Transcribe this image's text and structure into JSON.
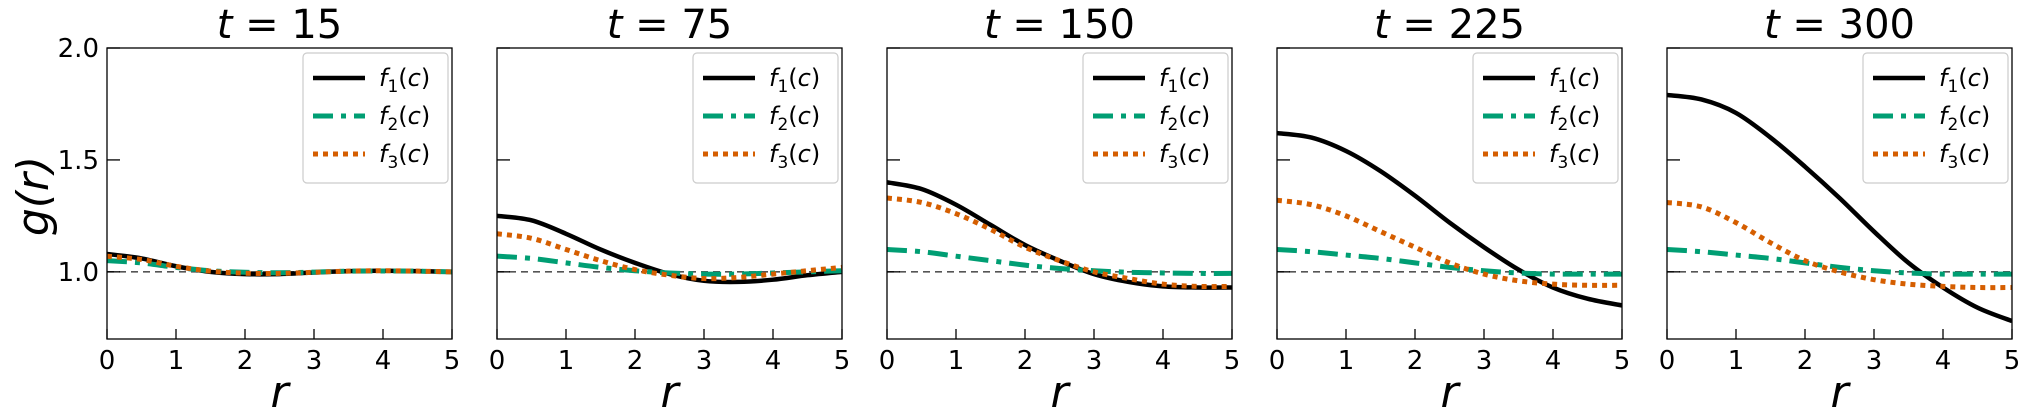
{
  "figure": {
    "ylabel": "g(r)",
    "xlabel": "r",
    "reference_line_y": 1.0
  },
  "chart_data": [
    {
      "type": "line",
      "title_var": "t",
      "title_eq": " = ",
      "title_num": "15",
      "xlabel": "r",
      "ylabel": "g(r)",
      "xlim": [
        0,
        5
      ],
      "ylim": [
        0.7,
        2.0
      ],
      "xticks": [
        "0",
        "1",
        "2",
        "3",
        "4",
        "5"
      ],
      "yticks": [
        "1.0",
        "1.5",
        "2.0"
      ],
      "grid": false,
      "legend_position": "top-right",
      "series": [
        {
          "name": "f1(c)",
          "label_main": "f",
          "label_sub": "1",
          "label_arg": "(c)",
          "color": "#000000",
          "style": "solid",
          "x": [
            0,
            0.5,
            1,
            1.5,
            2,
            2.5,
            3,
            3.5,
            4,
            4.5,
            5
          ],
          "y": [
            1.08,
            1.06,
            1.025,
            1.0,
            0.99,
            0.99,
            0.997,
            1.003,
            1.005,
            1.003,
            1.0
          ]
        },
        {
          "name": "f2(c)",
          "label_main": "f",
          "label_sub": "2",
          "label_arg": "(c)",
          "color": "#009E73",
          "style": "dashdot",
          "x": [
            0,
            0.5,
            1,
            1.5,
            2,
            2.5,
            3,
            3.5,
            4,
            4.5,
            5
          ],
          "y": [
            1.05,
            1.04,
            1.02,
            1.005,
            0.998,
            0.996,
            0.999,
            1.003,
            1.004,
            1.003,
            1.0
          ]
        },
        {
          "name": "f3(c)",
          "label_main": "f",
          "label_sub": "3",
          "label_arg": "(c)",
          "color": "#D55E00",
          "style": "dotted",
          "x": [
            0,
            0.5,
            1,
            1.5,
            2,
            2.5,
            3,
            3.5,
            4,
            4.5,
            5
          ],
          "y": [
            1.07,
            1.055,
            1.025,
            1.003,
            0.994,
            0.993,
            0.998,
            1.003,
            1.005,
            1.003,
            1.0
          ]
        }
      ]
    },
    {
      "type": "line",
      "title_var": "t",
      "title_eq": " = ",
      "title_num": "75",
      "xlabel": "r",
      "ylabel": "g(r)",
      "xlim": [
        0,
        5
      ],
      "ylim": [
        0.7,
        2.0
      ],
      "xticks": [
        "0",
        "1",
        "2",
        "3",
        "4",
        "5"
      ],
      "yticks": [],
      "grid": false,
      "legend_position": "top-right",
      "series": [
        {
          "name": "f1(c)",
          "label_main": "f",
          "label_sub": "1",
          "label_arg": "(c)",
          "color": "#000000",
          "style": "solid",
          "x": [
            0,
            0.5,
            1,
            1.5,
            2,
            2.5,
            3,
            3.5,
            4,
            4.5,
            5
          ],
          "y": [
            1.25,
            1.23,
            1.17,
            1.1,
            1.04,
            0.99,
            0.96,
            0.955,
            0.965,
            0.985,
            1.0
          ]
        },
        {
          "name": "f2(c)",
          "label_main": "f",
          "label_sub": "2",
          "label_arg": "(c)",
          "color": "#009E73",
          "style": "dashdot",
          "x": [
            0,
            0.5,
            1,
            1.5,
            2,
            2.5,
            3,
            3.5,
            4,
            4.5,
            5
          ],
          "y": [
            1.07,
            1.06,
            1.04,
            1.02,
            1.005,
            0.995,
            0.99,
            0.99,
            0.995,
            1.0,
            1.005
          ]
        },
        {
          "name": "f3(c)",
          "label_main": "f",
          "label_sub": "3",
          "label_arg": "(c)",
          "color": "#D55E00",
          "style": "dotted",
          "x": [
            0,
            0.5,
            1,
            1.5,
            2,
            2.5,
            3,
            3.5,
            4,
            4.5,
            5
          ],
          "y": [
            1.17,
            1.15,
            1.1,
            1.05,
            1.01,
            0.985,
            0.97,
            0.975,
            0.99,
            1.005,
            1.02
          ]
        }
      ]
    },
    {
      "type": "line",
      "title_var": "t",
      "title_eq": " = ",
      "title_num": "150",
      "xlabel": "r",
      "ylabel": "g(r)",
      "xlim": [
        0,
        5
      ],
      "ylim": [
        0.7,
        2.0
      ],
      "xticks": [
        "0",
        "1",
        "2",
        "3",
        "4",
        "5"
      ],
      "yticks": [],
      "grid": false,
      "legend_position": "top-right",
      "series": [
        {
          "name": "f1(c)",
          "label_main": "f",
          "label_sub": "1",
          "label_arg": "(c)",
          "color": "#000000",
          "style": "solid",
          "x": [
            0,
            0.5,
            1,
            1.5,
            2,
            2.5,
            3,
            3.5,
            4,
            4.5,
            5
          ],
          "y": [
            1.4,
            1.37,
            1.3,
            1.21,
            1.12,
            1.05,
            0.99,
            0.955,
            0.935,
            0.93,
            0.93
          ]
        },
        {
          "name": "f2(c)",
          "label_main": "f",
          "label_sub": "2",
          "label_arg": "(c)",
          "color": "#009E73",
          "style": "dashdot",
          "x": [
            0,
            0.5,
            1,
            1.5,
            2,
            2.5,
            3,
            3.5,
            4,
            4.5,
            5
          ],
          "y": [
            1.1,
            1.09,
            1.07,
            1.05,
            1.03,
            1.015,
            1.005,
            0.998,
            0.995,
            0.993,
            0.993
          ]
        },
        {
          "name": "f3(c)",
          "label_main": "f",
          "label_sub": "3",
          "label_arg": "(c)",
          "color": "#D55E00",
          "style": "dotted",
          "x": [
            0,
            0.5,
            1,
            1.5,
            2,
            2.5,
            3,
            3.5,
            4,
            4.5,
            5
          ],
          "y": [
            1.33,
            1.31,
            1.26,
            1.19,
            1.11,
            1.05,
            1.0,
            0.97,
            0.945,
            0.935,
            0.935
          ]
        }
      ]
    },
    {
      "type": "line",
      "title_var": "t",
      "title_eq": " = ",
      "title_num": "225",
      "xlabel": "r",
      "ylabel": "g(r)",
      "xlim": [
        0,
        5
      ],
      "ylim": [
        0.7,
        2.0
      ],
      "xticks": [
        "0",
        "1",
        "2",
        "3",
        "4",
        "5"
      ],
      "yticks": [],
      "grid": false,
      "legend_position": "top-right",
      "series": [
        {
          "name": "f1(c)",
          "label_main": "f",
          "label_sub": "1",
          "label_arg": "(c)",
          "color": "#000000",
          "style": "solid",
          "x": [
            0,
            0.5,
            1,
            1.5,
            2,
            2.5,
            3,
            3.5,
            4,
            4.5,
            5
          ],
          "y": [
            1.62,
            1.6,
            1.54,
            1.45,
            1.34,
            1.22,
            1.11,
            1.01,
            0.93,
            0.88,
            0.85
          ]
        },
        {
          "name": "f2(c)",
          "label_main": "f",
          "label_sub": "2",
          "label_arg": "(c)",
          "color": "#009E73",
          "style": "dashdot",
          "x": [
            0,
            0.5,
            1,
            1.5,
            2,
            2.5,
            3,
            3.5,
            4,
            4.5,
            5
          ],
          "y": [
            1.1,
            1.09,
            1.075,
            1.06,
            1.04,
            1.02,
            1.005,
            0.995,
            0.99,
            0.99,
            0.99
          ]
        },
        {
          "name": "f3(c)",
          "label_main": "f",
          "label_sub": "3",
          "label_arg": "(c)",
          "color": "#D55E00",
          "style": "dotted",
          "x": [
            0,
            0.5,
            1,
            1.5,
            2,
            2.5,
            3,
            3.5,
            4,
            4.5,
            5
          ],
          "y": [
            1.32,
            1.3,
            1.25,
            1.18,
            1.11,
            1.04,
            0.99,
            0.96,
            0.945,
            0.94,
            0.94
          ]
        }
      ]
    },
    {
      "type": "line",
      "title_var": "t",
      "title_eq": " = ",
      "title_num": "300",
      "xlabel": "r",
      "ylabel": "g(r)",
      "xlim": [
        0,
        5
      ],
      "ylim": [
        0.7,
        2.0
      ],
      "xticks": [
        "0",
        "1",
        "2",
        "3",
        "4",
        "5"
      ],
      "yticks": [],
      "grid": false,
      "legend_position": "top-right",
      "series": [
        {
          "name": "f1(c)",
          "label_main": "f",
          "label_sub": "1",
          "label_arg": "(c)",
          "color": "#000000",
          "style": "solid",
          "x": [
            0,
            0.5,
            1,
            1.5,
            2,
            2.5,
            3,
            3.5,
            4,
            4.5,
            5
          ],
          "y": [
            1.79,
            1.77,
            1.71,
            1.6,
            1.47,
            1.33,
            1.18,
            1.04,
            0.93,
            0.84,
            0.78
          ]
        },
        {
          "name": "f2(c)",
          "label_main": "f",
          "label_sub": "2",
          "label_arg": "(c)",
          "color": "#009E73",
          "style": "dashdot",
          "x": [
            0,
            0.5,
            1,
            1.5,
            2,
            2.5,
            3,
            3.5,
            4,
            4.5,
            5
          ],
          "y": [
            1.1,
            1.09,
            1.075,
            1.06,
            1.04,
            1.02,
            1.005,
            0.995,
            0.99,
            0.99,
            0.99
          ]
        },
        {
          "name": "f3(c)",
          "label_main": "f",
          "label_sub": "3",
          "label_arg": "(c)",
          "color": "#D55E00",
          "style": "dotted",
          "x": [
            0,
            0.5,
            1,
            1.5,
            2,
            2.5,
            3,
            3.5,
            4,
            4.5,
            5
          ],
          "y": [
            1.31,
            1.29,
            1.22,
            1.13,
            1.05,
            1.0,
            0.965,
            0.945,
            0.935,
            0.93,
            0.93
          ]
        }
      ]
    }
  ]
}
